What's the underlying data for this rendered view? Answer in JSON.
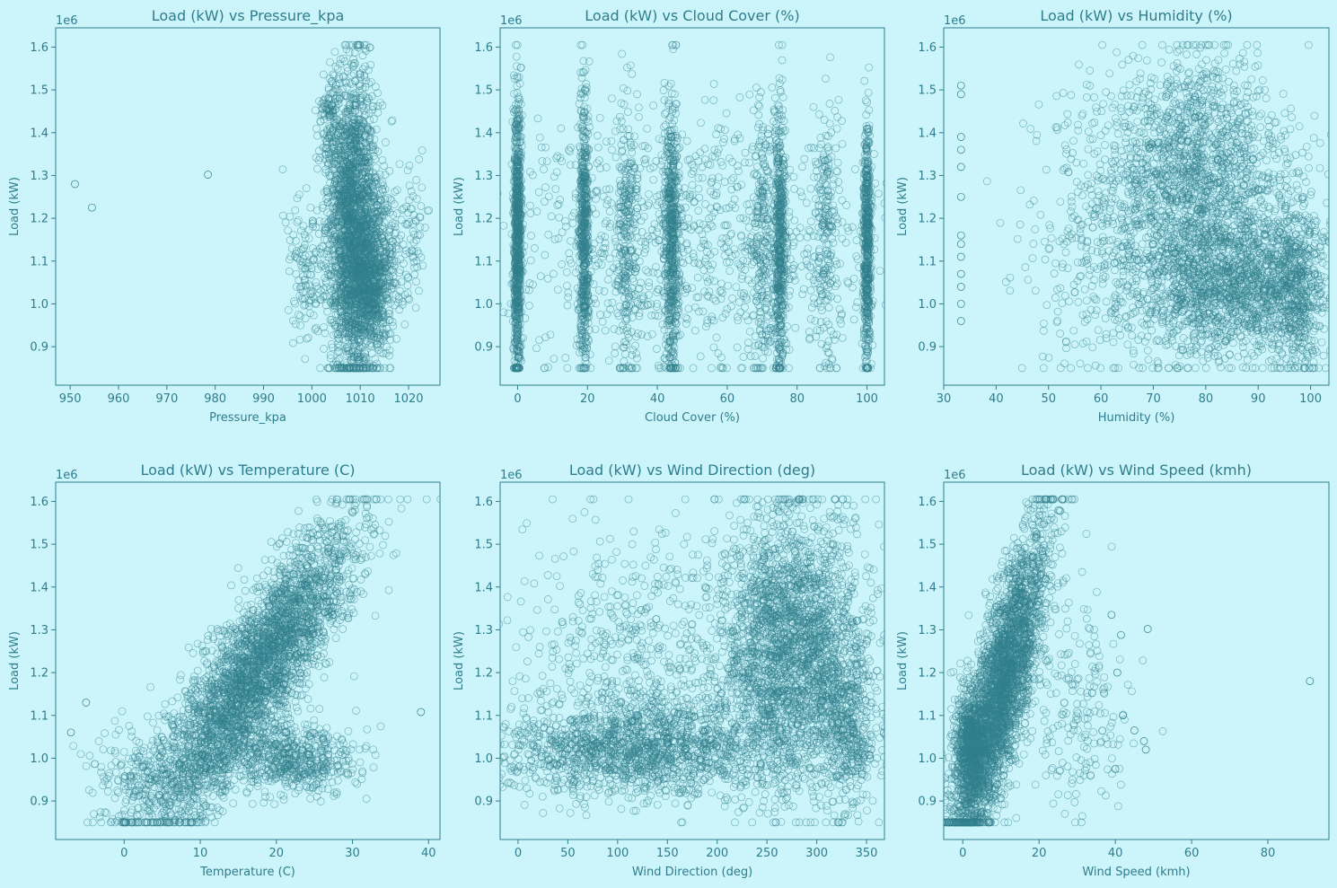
{
  "figure": {
    "background": "#ccf5fb",
    "axes_color": "#2f7d8c",
    "text_color": "#2f7d8c",
    "marker_color": "#327f8d",
    "marker": "hollow-circle"
  },
  "chart_data": [
    {
      "type": "scatter",
      "title": "Load (kW) vs Pressure_kpa",
      "xlabel": "Pressure_kpa",
      "ylabel": "Load (kW)",
      "y_offset_label": "1e6",
      "xlim": [
        947,
        1026.5
      ],
      "ylim": [
        810000,
        1645000
      ],
      "xticks": [
        950,
        960,
        970,
        980,
        990,
        1000,
        1010,
        1020
      ],
      "yticks": [
        900000,
        1000000,
        1100000,
        1200000,
        1300000,
        1400000,
        1500000,
        1600000
      ],
      "ytick_labels": [
        "0.9",
        "1.0",
        "1.1",
        "1.2",
        "1.3",
        "1.4",
        "1.5",
        "1.6"
      ],
      "clusters": [
        {
          "x": 1008.5,
          "sx": 2.6,
          "y": 1180000,
          "sy": 175000,
          "n": 2300
        },
        {
          "x": 1012.5,
          "sx": 2.5,
          "y": 1060000,
          "sy": 90000,
          "n": 900
        },
        {
          "x": 999,
          "sx": 2.5,
          "y": 1080000,
          "sy": 80000,
          "n": 140
        },
        {
          "x": 1004,
          "sx": 1.2,
          "y": 1430000,
          "sy": 60000,
          "n": 120
        },
        {
          "x": 1021,
          "sx": 1.5,
          "y": 1150000,
          "sy": 90000,
          "n": 70
        }
      ],
      "points": [
        {
          "x": 951,
          "y": 1280000
        },
        {
          "x": 954.5,
          "y": 1225000
        },
        {
          "x": 978.5,
          "y": 1302000
        }
      ]
    },
    {
      "type": "scatter",
      "title": "Load (kW) vs Cloud Cover (%)",
      "xlabel": "Cloud Cover (%)",
      "ylabel": "Load (kW)",
      "y_offset_label": "1e6",
      "xlim": [
        -5,
        105
      ],
      "ylim": [
        810000,
        1645000
      ],
      "xticks": [
        0,
        20,
        40,
        60,
        80,
        100
      ],
      "yticks": [
        900000,
        1000000,
        1100000,
        1200000,
        1300000,
        1400000,
        1500000,
        1600000
      ],
      "ytick_labels": [
        "0.9",
        "1.0",
        "1.1",
        "1.2",
        "1.3",
        "1.4",
        "1.5",
        "1.6"
      ],
      "clusters": [
        {
          "x": 0,
          "sx": 0.5,
          "y": 1150000,
          "sy": 165000,
          "n": 900
        },
        {
          "x": 19,
          "sx": 0.7,
          "y": 1150000,
          "sy": 160000,
          "n": 600
        },
        {
          "x": 44,
          "sx": 1.0,
          "y": 1160000,
          "sy": 160000,
          "n": 600
        },
        {
          "x": 75,
          "sx": 0.8,
          "y": 1150000,
          "sy": 160000,
          "n": 550
        },
        {
          "x": 100,
          "sx": 0.5,
          "y": 1130000,
          "sy": 150000,
          "n": 600
        },
        {
          "x": 31,
          "sx": 1.5,
          "y": 1150000,
          "sy": 160000,
          "n": 250
        },
        {
          "x": 70,
          "sx": 1.5,
          "y": 1150000,
          "sy": 160000,
          "n": 220
        },
        {
          "x": 88,
          "sx": 2.0,
          "y": 1150000,
          "sy": 160000,
          "n": 220
        },
        {
          "x": 50,
          "sx": 27,
          "y": 1150000,
          "sy": 150000,
          "n": 1000
        }
      ],
      "points": []
    },
    {
      "type": "scatter",
      "title": "Load (kW) vs Humidity (%)",
      "xlabel": "Humidity (%)",
      "ylabel": "Load (kW)",
      "y_offset_label": "1e6",
      "xlim": [
        30,
        103.5
      ],
      "ylim": [
        810000,
        1645000
      ],
      "xticks": [
        30,
        40,
        50,
        60,
        70,
        80,
        90,
        100
      ],
      "xtick_labels": [
        "30",
        "40",
        "50",
        "60",
        "70",
        "80",
        "90",
        "100"
      ],
      "yticks": [
        900000,
        1000000,
        1100000,
        1200000,
        1300000,
        1400000,
        1500000,
        1600000
      ],
      "ytick_labels": [
        "0.9",
        "1.0",
        "1.1",
        "1.2",
        "1.3",
        "1.4",
        "1.5",
        "1.6"
      ],
      "clusters": [
        {
          "x": 78,
          "sx": 9,
          "y": 1300000,
          "sy": 140000,
          "n": 1600
        },
        {
          "x": 85,
          "sx": 9,
          "y": 1040000,
          "sy": 80000,
          "n": 1500
        },
        {
          "x": 97,
          "sx": 2.5,
          "y": 1050000,
          "sy": 110000,
          "n": 500
        },
        {
          "x": 65,
          "sx": 10,
          "y": 1150000,
          "sy": 170000,
          "n": 500
        }
      ],
      "points": [
        {
          "x": 33.3,
          "y": 960000
        },
        {
          "x": 33.3,
          "y": 1000000
        },
        {
          "x": 33.3,
          "y": 1040000
        },
        {
          "x": 33.3,
          "y": 1070000
        },
        {
          "x": 33.3,
          "y": 1110000
        },
        {
          "x": 33.3,
          "y": 1140000
        },
        {
          "x": 33.3,
          "y": 1160000
        },
        {
          "x": 33.3,
          "y": 1250000
        },
        {
          "x": 33.3,
          "y": 1320000
        },
        {
          "x": 33.3,
          "y": 1360000
        },
        {
          "x": 33.3,
          "y": 1390000
        },
        {
          "x": 33.3,
          "y": 1490000
        },
        {
          "x": 33.3,
          "y": 1510000
        }
      ]
    },
    {
      "type": "scatter",
      "title": "Load (kW) vs Temperature (C)",
      "xlabel": "Temperature (C)",
      "ylabel": "Load (kW)",
      "y_offset_label": "1e6",
      "xlim": [
        -9,
        41.5
      ],
      "ylim": [
        810000,
        1645000
      ],
      "xticks": [
        0,
        10,
        20,
        30,
        40
      ],
      "yticks": [
        900000,
        1000000,
        1100000,
        1200000,
        1300000,
        1400000,
        1500000,
        1600000
      ],
      "ytick_labels": [
        "0.9",
        "1.0",
        "1.1",
        "1.2",
        "1.3",
        "1.4",
        "1.5",
        "1.6"
      ],
      "correlated": {
        "x_mean": 17,
        "x_sd": 6.5,
        "y_intercept": 820000,
        "y_slope": 22000,
        "y_noise": 90000,
        "n": 3500
      },
      "clusters": [
        {
          "x": 22,
          "sx": 4,
          "y": 1000000,
          "sy": 40000,
          "n": 600
        },
        {
          "x": 3,
          "sx": 4,
          "y": 960000,
          "sy": 60000,
          "n": 250
        }
      ],
      "points": [
        {
          "x": 39,
          "y": 1108000
        },
        {
          "x": -7,
          "y": 1060000
        },
        {
          "x": -5,
          "y": 1130000
        }
      ]
    },
    {
      "type": "scatter",
      "title": "Load (kW) vs Wind Direction (deg)",
      "xlabel": "Wind Direction (deg)",
      "ylabel": "Load (kW)",
      "y_offset_label": "1e6",
      "xlim": [
        -18,
        368
      ],
      "ylim": [
        810000,
        1645000
      ],
      "xticks": [
        0,
        50,
        100,
        150,
        200,
        250,
        300,
        350
      ],
      "yticks": [
        900000,
        1000000,
        1100000,
        1200000,
        1300000,
        1400000,
        1500000,
        1600000
      ],
      "ytick_labels": [
        "0.9",
        "1.0",
        "1.1",
        "1.2",
        "1.3",
        "1.4",
        "1.5",
        "1.6"
      ],
      "clusters": [
        {
          "x": 275,
          "sx": 35,
          "y": 1260000,
          "sy": 160000,
          "n": 2600
        },
        {
          "x": 120,
          "sx": 70,
          "y": 1020000,
          "sy": 55000,
          "n": 1600
        },
        {
          "x": 120,
          "sx": 70,
          "y": 1250000,
          "sy": 150000,
          "n": 600
        },
        {
          "x": 330,
          "sx": 15,
          "y": 1080000,
          "sy": 100000,
          "n": 500
        }
      ],
      "points": []
    },
    {
      "type": "scatter",
      "title": "Load (kW) vs Wind Speed (kmh)",
      "xlabel": "Wind Speed (kmh)",
      "ylabel": "Load (kW)",
      "y_offset_label": "1e6",
      "xlim": [
        -5,
        96
      ],
      "ylim": [
        810000,
        1645000
      ],
      "xticks": [
        0,
        20,
        40,
        60,
        80
      ],
      "yticks": [
        900000,
        1000000,
        1100000,
        1200000,
        1300000,
        1400000,
        1500000,
        1600000
      ],
      "ytick_labels": [
        "0.9",
        "1.0",
        "1.1",
        "1.2",
        "1.3",
        "1.4",
        "1.5",
        "1.6"
      ],
      "correlated": {
        "x_mean": 10,
        "x_sd": 6,
        "y_intercept": 920000,
        "y_slope": 24000,
        "y_noise": 110000,
        "n": 3200
      },
      "clusters": [
        {
          "x": 2,
          "sx": 2,
          "y": 1020000,
          "sy": 70000,
          "n": 700
        },
        {
          "x": 30,
          "sx": 6,
          "y": 1120000,
          "sy": 130000,
          "n": 200
        }
      ],
      "points": [
        {
          "x": 91,
          "y": 1180000
        },
        {
          "x": 48.5,
          "y": 1302000
        },
        {
          "x": 48,
          "y": 1020000
        },
        {
          "x": 47.5,
          "y": 1040000
        },
        {
          "x": 45,
          "y": 1065000
        },
        {
          "x": 42,
          "y": 1100000
        },
        {
          "x": 40,
          "y": 975000
        },
        {
          "x": 41.5,
          "y": 1288000
        },
        {
          "x": 40.5,
          "y": 1200000
        },
        {
          "x": 39,
          "y": 1335000
        }
      ]
    }
  ]
}
